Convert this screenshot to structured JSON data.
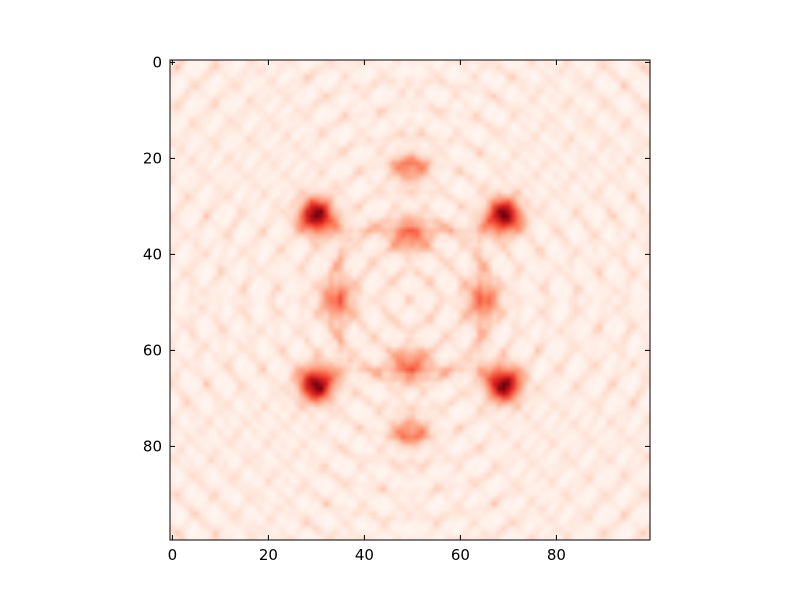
{
  "chart_data": {
    "type": "heatmap",
    "title": "",
    "xlabel": "",
    "ylabel": "",
    "colormap": "Reds",
    "colormap_stops": [
      "#fff5f0",
      "#fee0d2",
      "#fcbba1",
      "#fc9272",
      "#fb6a4a",
      "#ef3b2c",
      "#cb181d",
      "#a50f15",
      "#67000d"
    ],
    "shape": [
      100,
      100
    ],
    "symmetry": "four-fold mirror symmetric about center (49.5, 49.5)",
    "xlim": [
      -0.5,
      99.5
    ],
    "ylim": [
      99.5,
      -0.5
    ],
    "x_ticks": [
      0,
      20,
      40,
      60,
      80
    ],
    "x_tick_labels": [
      "0",
      "20",
      "40",
      "60",
      "80"
    ],
    "y_ticks": [
      0,
      20,
      40,
      60,
      80
    ],
    "y_tick_labels": [
      "0",
      "20",
      "40",
      "60",
      "80"
    ],
    "dark_regions": [
      {
        "x": 30,
        "y": 32,
        "value": 1.0
      },
      {
        "x": 69,
        "y": 32,
        "value": 1.0
      },
      {
        "x": 30,
        "y": 67,
        "value": 1.0
      },
      {
        "x": 69,
        "y": 67,
        "value": 1.0
      },
      {
        "x": 50,
        "y": 22,
        "value": 0.85
      },
      {
        "x": 50,
        "y": 77,
        "value": 0.85
      },
      {
        "x": 50,
        "y": 36,
        "value": 0.8
      },
      {
        "x": 50,
        "y": 63,
        "value": 0.8
      },
      {
        "x": 34,
        "y": 50,
        "value": 0.8
      },
      {
        "x": 65,
        "y": 50,
        "value": 0.8
      }
    ]
  }
}
